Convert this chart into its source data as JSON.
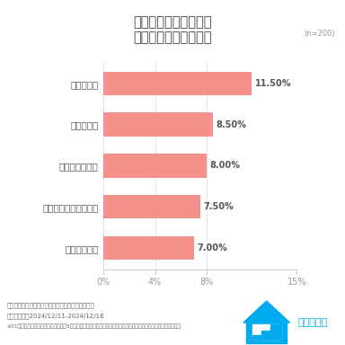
{
  "title_line1": "住宅業界イメージ調査",
  "title_line2": "ポジティブなイメージ",
  "n_label": "(n=200)",
  "categories": [
    "将来性がある",
    "顧客を大事にしている",
    "高いステイタス",
    "一流である",
    "知識が豊富"
  ],
  "values": [
    7.0,
    7.5,
    8.0,
    8.5,
    11.5
  ],
  "bar_color": "#F5918A",
  "xlim": [
    0,
    15
  ],
  "xticks": [
    0,
    4,
    8,
    15
  ],
  "xtick_labels": [
    "0%",
    "4%",
    "8%",
    "15%"
  ],
  "value_labels": [
    "7.00%",
    "7.50%",
    "8.00%",
    "8.50%",
    "11.50%"
  ],
  "footnote_line1": "・調査元：株式会社ユナイテッドマインドジャパン",
  "footnote_line2": "・調査期間：2024/12/11-2024/12/18",
  "footnote_line3": "※31項目中ポジティブなイメージ上位5項目を抜粋。全調査結果をご覧になりたい場合にはお問い合わせください。",
  "background_color": "#ffffff",
  "title_color": "#444444",
  "bar_label_color": "#555555",
  "tick_color": "#999999",
  "footnote_color": "#666666",
  "logo_text": "住まキャリ",
  "logo_color": "#00AAEE",
  "grid_color": "#e0e0e0",
  "spine_color": "#cccccc"
}
